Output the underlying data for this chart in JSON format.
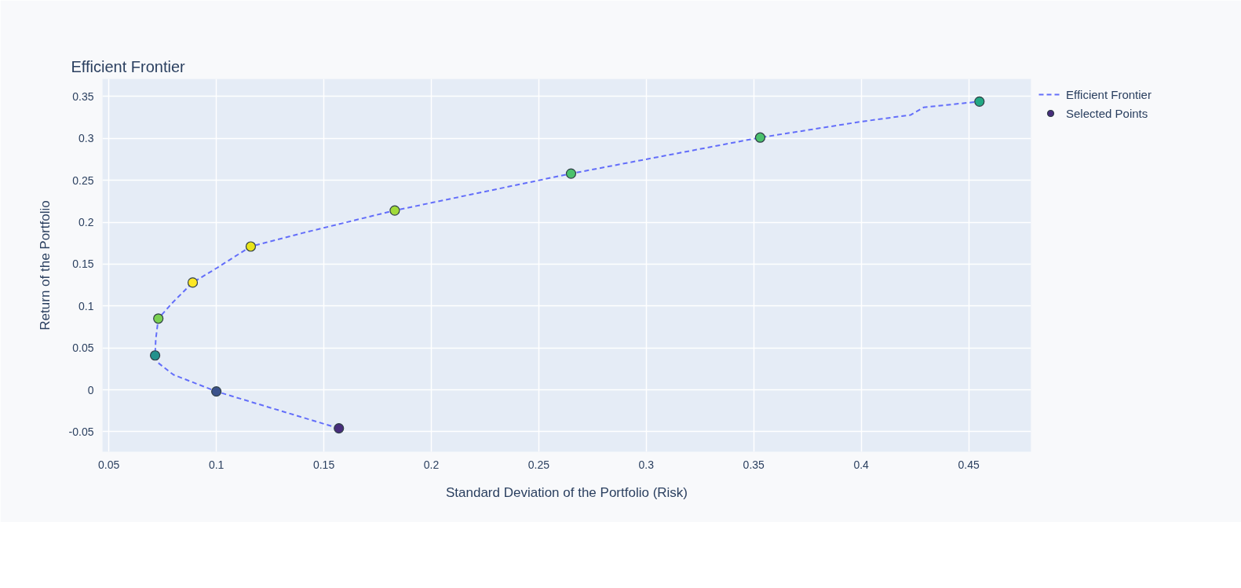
{
  "chart_data": {
    "type": "scatter",
    "title": "Efficient Frontier",
    "xlabel": "Standard Deviation of the Portfolio (Risk)",
    "ylabel": "Return of the Portfolio",
    "xlim": [
      0.047,
      0.479
    ],
    "ylim": [
      -0.074,
      0.371
    ],
    "xticks": [
      0.05,
      0.1,
      0.15,
      0.2,
      0.25,
      0.3,
      0.35,
      0.4,
      0.45
    ],
    "yticks": [
      -0.05,
      0,
      0.05,
      0.1,
      0.15,
      0.2,
      0.25,
      0.3,
      0.35
    ],
    "grid": true,
    "legend": "top right",
    "series": [
      {
        "name": "Efficient Frontier",
        "type": "line",
        "line_style": "dashed",
        "color": "#636efa",
        "x": [
          0.157,
          0.1,
          0.08,
          0.073,
          0.0715,
          0.0718,
          0.073,
          0.08,
          0.089,
          0.1,
          0.116,
          0.14,
          0.183,
          0.265,
          0.353,
          0.4,
          0.423,
          0.429,
          0.455
        ],
        "values": [
          -0.046,
          -0.002,
          0.018,
          0.032,
          0.041,
          0.06,
          0.085,
          0.105,
          0.128,
          0.145,
          0.171,
          0.187,
          0.214,
          0.258,
          0.301,
          0.32,
          0.328,
          0.337,
          0.344
        ]
      },
      {
        "name": "Selected Points",
        "marker": "circle",
        "x": [
          0.157,
          0.1,
          0.0715,
          0.073,
          0.089,
          0.116,
          0.183,
          0.265,
          0.353,
          0.455
        ],
        "values": [
          -0.046,
          -0.002,
          0.041,
          0.085,
          0.128,
          0.171,
          0.214,
          0.258,
          0.301,
          0.344
        ],
        "colors": [
          "#472d7b",
          "#3b528b",
          "#21918c",
          "#7ad151",
          "#fde725",
          "#e8e419",
          "#a0da39",
          "#4ac16d",
          "#4ac16d",
          "#22a884"
        ]
      }
    ]
  }
}
